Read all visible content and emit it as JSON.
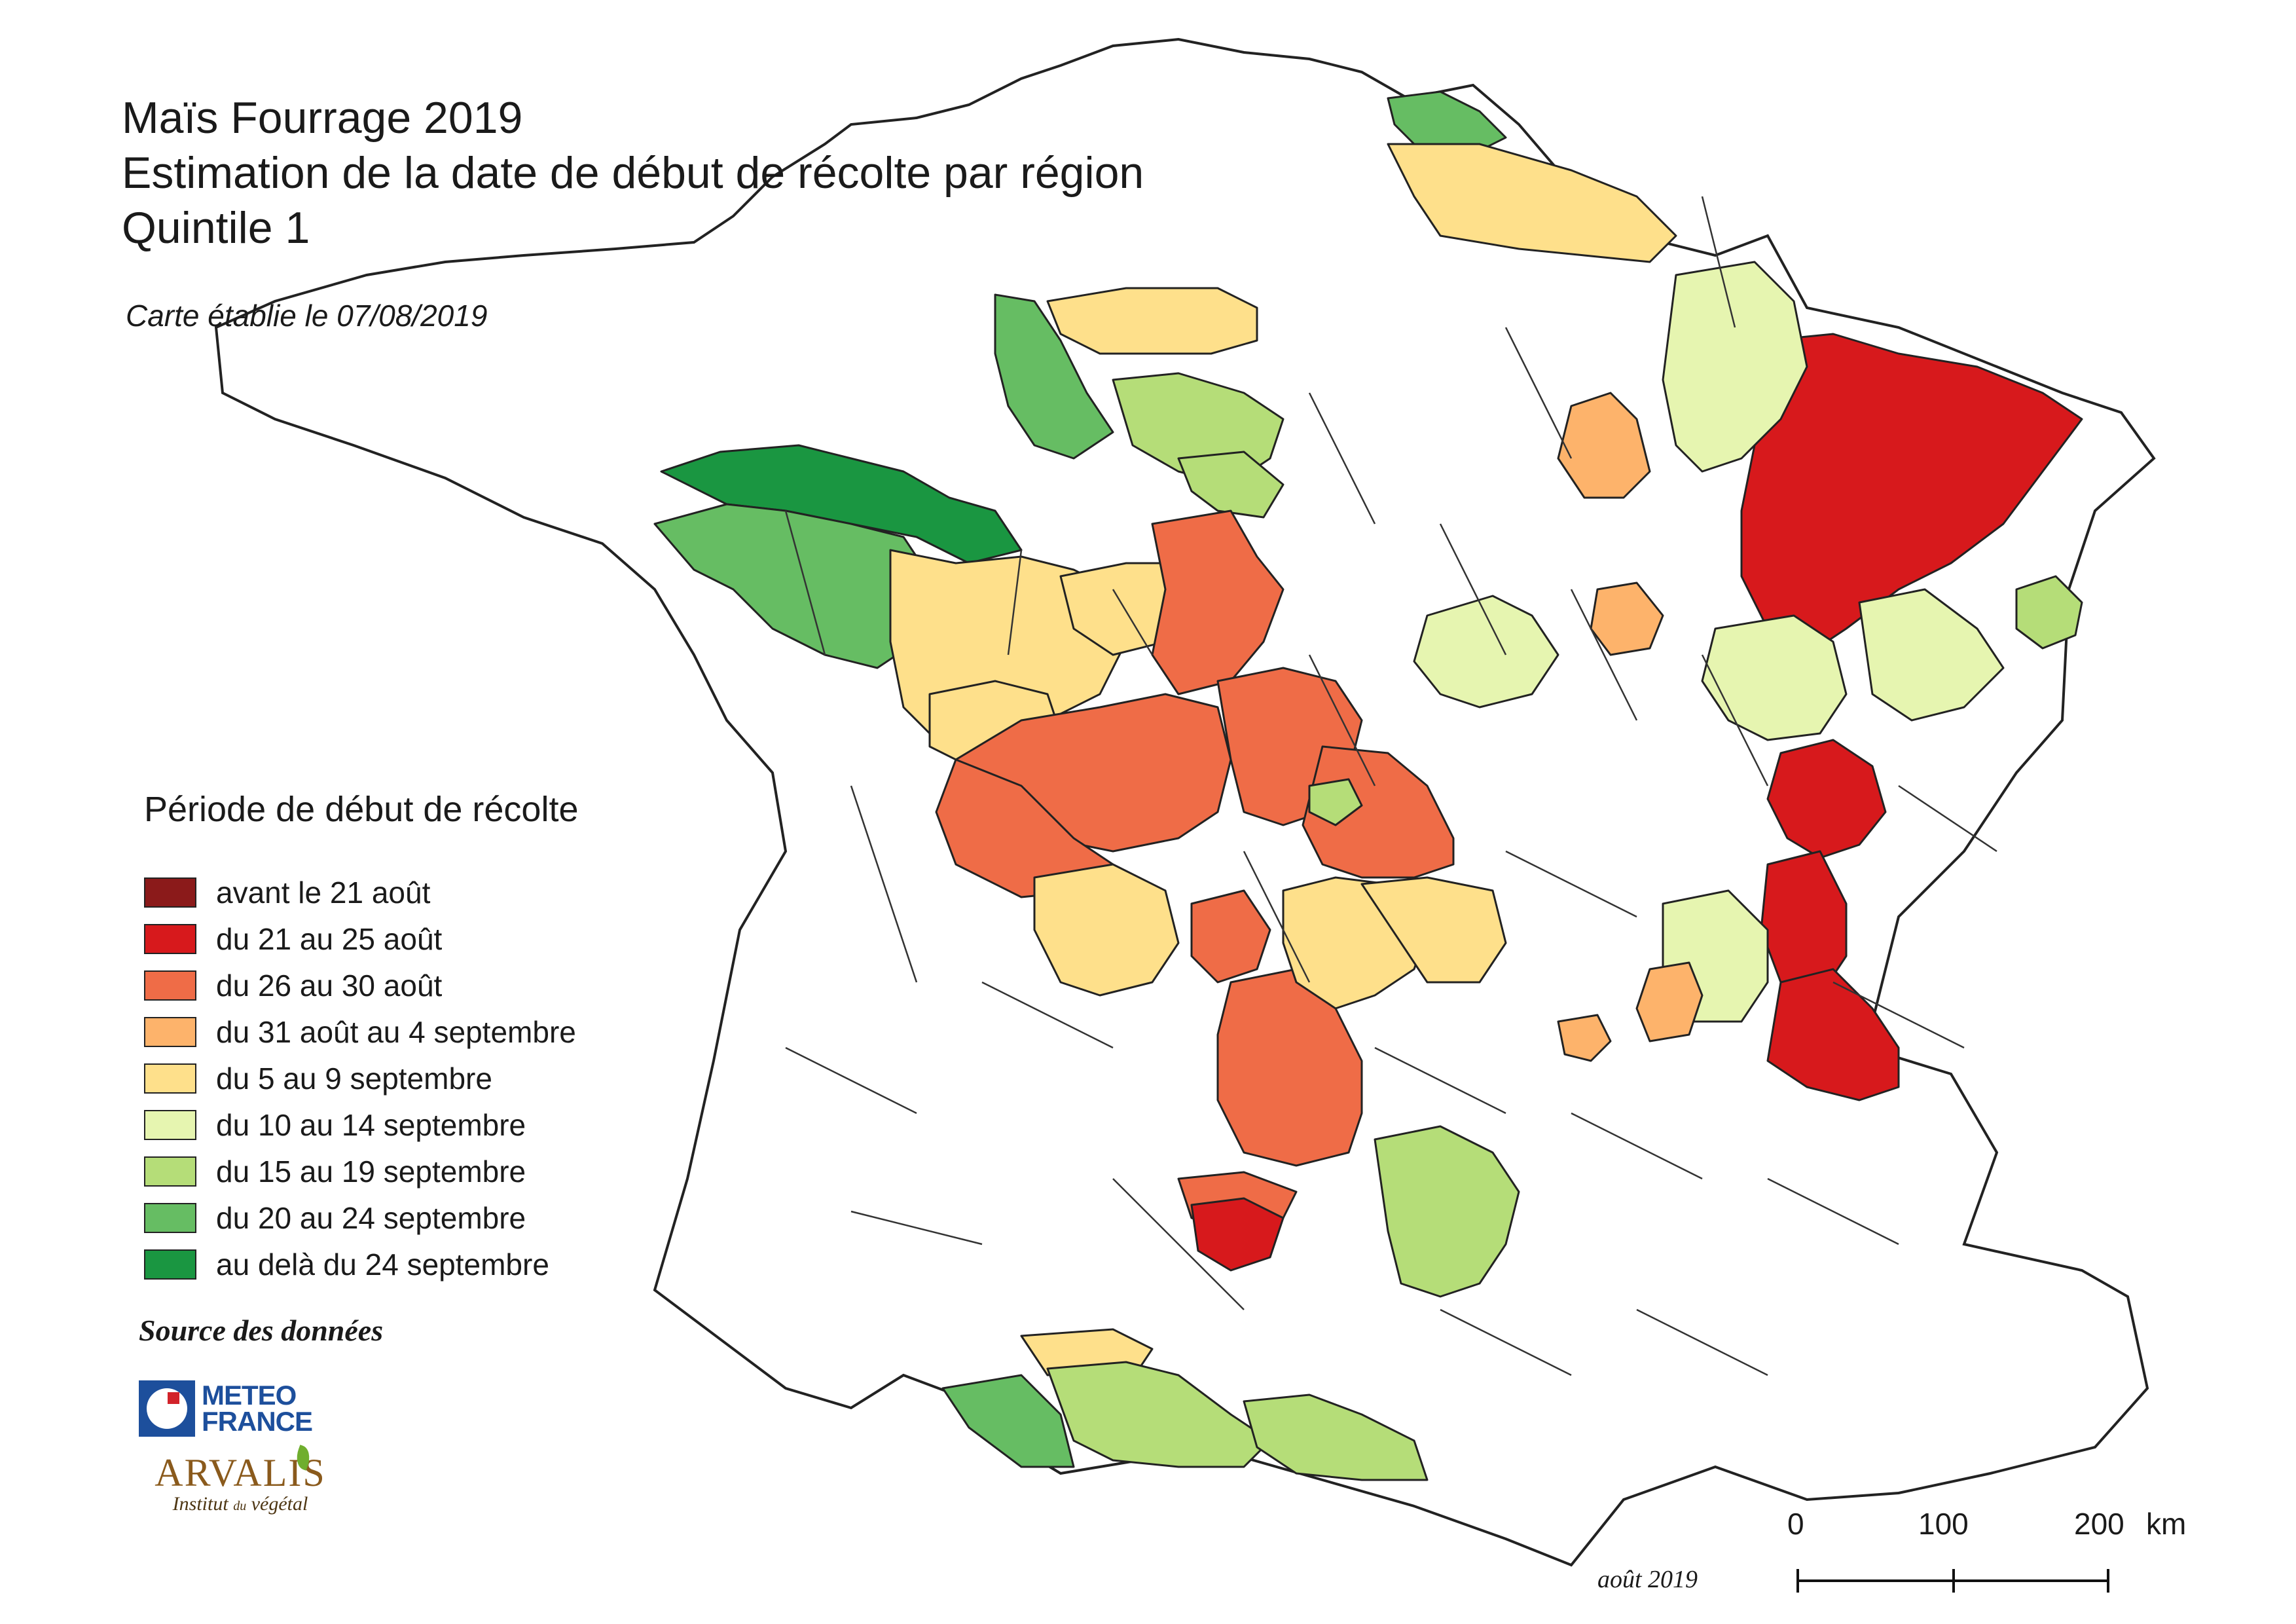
{
  "header": {
    "title_lines": [
      "Maïs Fourrage 2019",
      "Estimation de la date de début de récolte par région",
      "Quintile 1"
    ],
    "date_note": "Carte établie le 07/08/2019"
  },
  "legend": {
    "title": "Période de début de récolte",
    "items": [
      {
        "label": "avant le 21 août",
        "color": "#8b1a1a"
      },
      {
        "label": "du 21 au 25 août",
        "color": "#d7191c"
      },
      {
        "label": "du 26 au 30 août",
        "color": "#ef6c47"
      },
      {
        "label": "du 31 août au 4 septembre",
        "color": "#fdb36b"
      },
      {
        "label": "du 5 au 9 septembre",
        "color": "#fee08b"
      },
      {
        "label": "du 10 au 14 septembre",
        "color": "#e6f5b0"
      },
      {
        "label": "du 15 au 19 septembre",
        "color": "#b5dd78"
      },
      {
        "label": "du 20 au 24 septembre",
        "color": "#66bd63"
      },
      {
        "label": "au delà du 24 septembre",
        "color": "#1a9641"
      }
    ]
  },
  "source": {
    "label": "Source des données",
    "meteo_line1": "METEO",
    "meteo_line2": "FRANCE",
    "arvalis_name": "ARVALIS",
    "arvalis_sub_1": "Institut",
    "arvalis_sub_2": "du",
    "arvalis_sub_3": "végétal"
  },
  "scale_bar": {
    "labels": [
      "0",
      "100",
      "200"
    ],
    "unit": "km"
  },
  "map_date": "août 2019",
  "map_colors": {
    "outline": "#222222",
    "no_data": "#ffffff"
  }
}
